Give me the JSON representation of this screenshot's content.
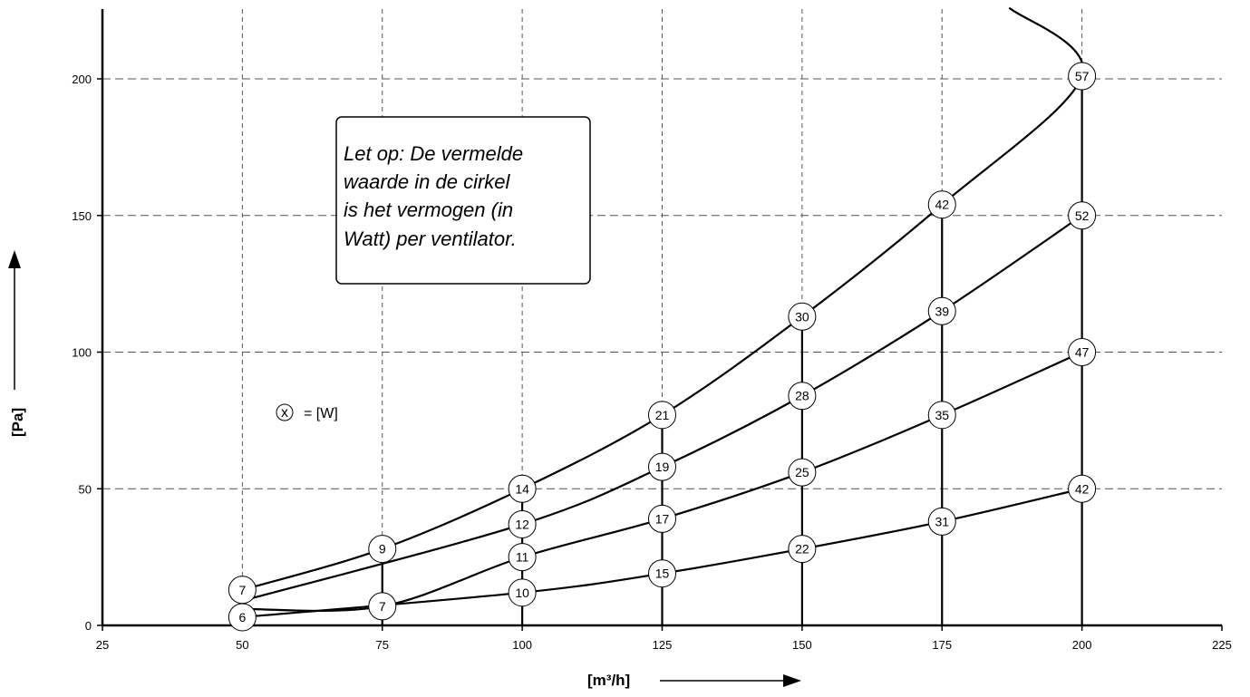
{
  "chart_data": {
    "type": "line",
    "xlabel": "[m³/h]",
    "ylabel": "[Pa]",
    "xlim": [
      25,
      225
    ],
    "ylim": [
      0,
      200
    ],
    "x_ticks": [
      "25",
      "50",
      "75",
      "100",
      "125",
      "150",
      "175",
      "200",
      "225"
    ],
    "y_ticks": [
      "0",
      "50",
      "100",
      "150",
      "200"
    ],
    "grid": true,
    "series": [
      {
        "x": [
          50,
          100,
          125,
          150,
          175,
          200
        ],
        "y": [
          3,
          12,
          19,
          28,
          38,
          50
        ],
        "labels": [
          "6",
          "10",
          "15",
          "22",
          "31",
          "42"
        ]
      },
      {
        "x": [
          50,
          75,
          100,
          125,
          150,
          175,
          200
        ],
        "y": [
          6,
          7,
          25,
          39,
          56,
          77,
          100
        ],
        "labels": [
          "",
          "7",
          "11",
          "17",
          "25",
          "35",
          "47"
        ]
      },
      {
        "x": [
          50,
          100,
          125,
          150,
          175,
          200
        ],
        "y": [
          9,
          37,
          58,
          84,
          115,
          150
        ],
        "labels": [
          "",
          "12",
          "19",
          "28",
          "39",
          "52"
        ]
      },
      {
        "x": [
          50,
          75,
          100,
          125,
          150,
          175,
          200,
          187
        ],
        "y": [
          13,
          28,
          50,
          77,
          113,
          154,
          201,
          226
        ],
        "labels": [
          "7",
          "9",
          "14",
          "21",
          "30",
          "42",
          "57",
          ""
        ]
      }
    ],
    "vertical_stems": [
      {
        "x": 75,
        "y_top": 28
      },
      {
        "x": 100,
        "y_top": 50
      },
      {
        "x": 125,
        "y_top": 77
      },
      {
        "x": 150,
        "y_top": 113
      },
      {
        "x": 175,
        "y_top": 154
      },
      {
        "x": 200,
        "y_top": 201
      }
    ],
    "annotations": {
      "note": [
        "Let op: De vermelde",
        "waarde in de cirkel",
        "is het vermogen (in",
        "Watt) per ventilator."
      ],
      "legend_symbol": "x",
      "legend_text": "= [W]"
    }
  }
}
